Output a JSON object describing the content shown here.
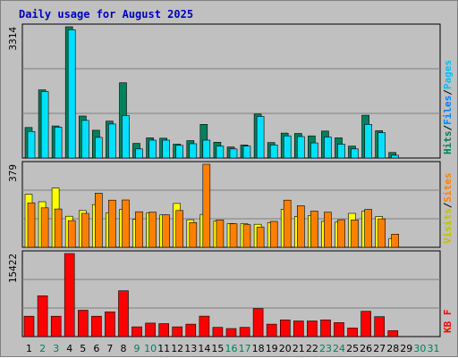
{
  "chart_data": {
    "type": "bar",
    "title": "Daily usage for August 2025",
    "categories": [
      "1",
      "2",
      "3",
      "4",
      "5",
      "6",
      "7",
      "8",
      "9",
      "10",
      "11",
      "12",
      "13",
      "14",
      "15",
      "16",
      "17",
      "18",
      "19",
      "20",
      "21",
      "22",
      "23",
      "24",
      "25",
      "26",
      "27",
      "28",
      "29",
      "30",
      "31"
    ],
    "weekend_days": [
      2,
      3,
      9,
      10,
      16,
      17,
      23,
      24,
      30,
      31
    ],
    "colors": {
      "hits": "#00805c",
      "files": "#00e0ff",
      "visits": "#ffff00",
      "sites": "#ff8000",
      "kbytes": "#ff0000",
      "title": "#0000c0",
      "weekday_label": "#000000",
      "weekend_label": "#00805c"
    },
    "panels": [
      {
        "id": "hits_files",
        "max_label": "3314",
        "ylim": [
          0,
          3314
        ],
        "legend": [
          {
            "text": "Hits",
            "color": "#00805c"
          },
          {
            "text": "/",
            "color": "#000000"
          },
          {
            "text": "Files",
            "color": "#0080ff"
          },
          {
            "text": "/",
            "color": "#000000"
          },
          {
            "text": "Pages",
            "color": "#00c0ff"
          }
        ],
        "series": [
          {
            "name": "Hits",
            "color": "#00805c",
            "values": [
              770,
              1720,
              810,
              3314,
              1060,
              700,
              930,
              1900,
              370,
              510,
              500,
              350,
              440,
              850,
              400,
              280,
              330,
              1110,
              390,
              630,
              620,
              560,
              680,
              510,
              300,
              1080,
              690,
              140,
              0,
              0,
              0
            ]
          },
          {
            "name": "Files",
            "color": "#00e0ff",
            "values": [
              670,
              1680,
              780,
              3240,
              950,
              520,
              860,
              1070,
              230,
              450,
              450,
              320,
              360,
              450,
              300,
              230,
              300,
              1050,
              330,
              560,
              540,
              380,
              530,
              350,
              230,
              850,
              640,
              70,
              0,
              0,
              0
            ]
          }
        ]
      },
      {
        "id": "visits_sites",
        "max_label": "379",
        "ylim": [
          0,
          379
        ],
        "legend": [
          {
            "text": "Visits",
            "color": "#c0c000"
          },
          {
            "text": "/",
            "color": "#000000"
          },
          {
            "text": "Sites",
            "color": "#ff8000"
          }
        ],
        "series": [
          {
            "name": "Visits",
            "color": "#ffff00",
            "values": [
              242,
              208,
              270,
              142,
              168,
              195,
              157,
              173,
              127,
              157,
              148,
              200,
              126,
              150,
              120,
              108,
              108,
              105,
              113,
              174,
              140,
              145,
              118,
              115,
              155,
              165,
              140,
              40,
              0,
              0,
              0
            ]
          },
          {
            "name": "Sites",
            "color": "#ff8000",
            "values": [
              203,
              180,
              175,
              122,
              155,
              247,
              215,
              216,
              162,
              160,
              148,
              168,
              113,
              379,
              125,
              107,
              103,
              92,
              118,
              215,
              190,
              165,
              160,
              126,
              125,
              173,
              130,
              60,
              0,
              0,
              0
            ]
          }
        ]
      },
      {
        "id": "kbytes",
        "max_label": "15422",
        "ylim": [
          0,
          15422
        ],
        "legend": [
          {
            "text": "KB F",
            "color": "#ff0000"
          }
        ],
        "series": [
          {
            "name": "KB F",
            "color": "#ff0000",
            "values": [
              3780,
              7580,
              3780,
              15422,
              4900,
              3780,
              4600,
              8500,
              1800,
              2500,
              2400,
              1800,
              2300,
              3800,
              1700,
              1500,
              1700,
              5200,
              2300,
              3100,
              2900,
              2900,
              3100,
              2600,
              1600,
              4700,
              3700,
              1100,
              0,
              0,
              0
            ]
          }
        ]
      }
    ]
  }
}
